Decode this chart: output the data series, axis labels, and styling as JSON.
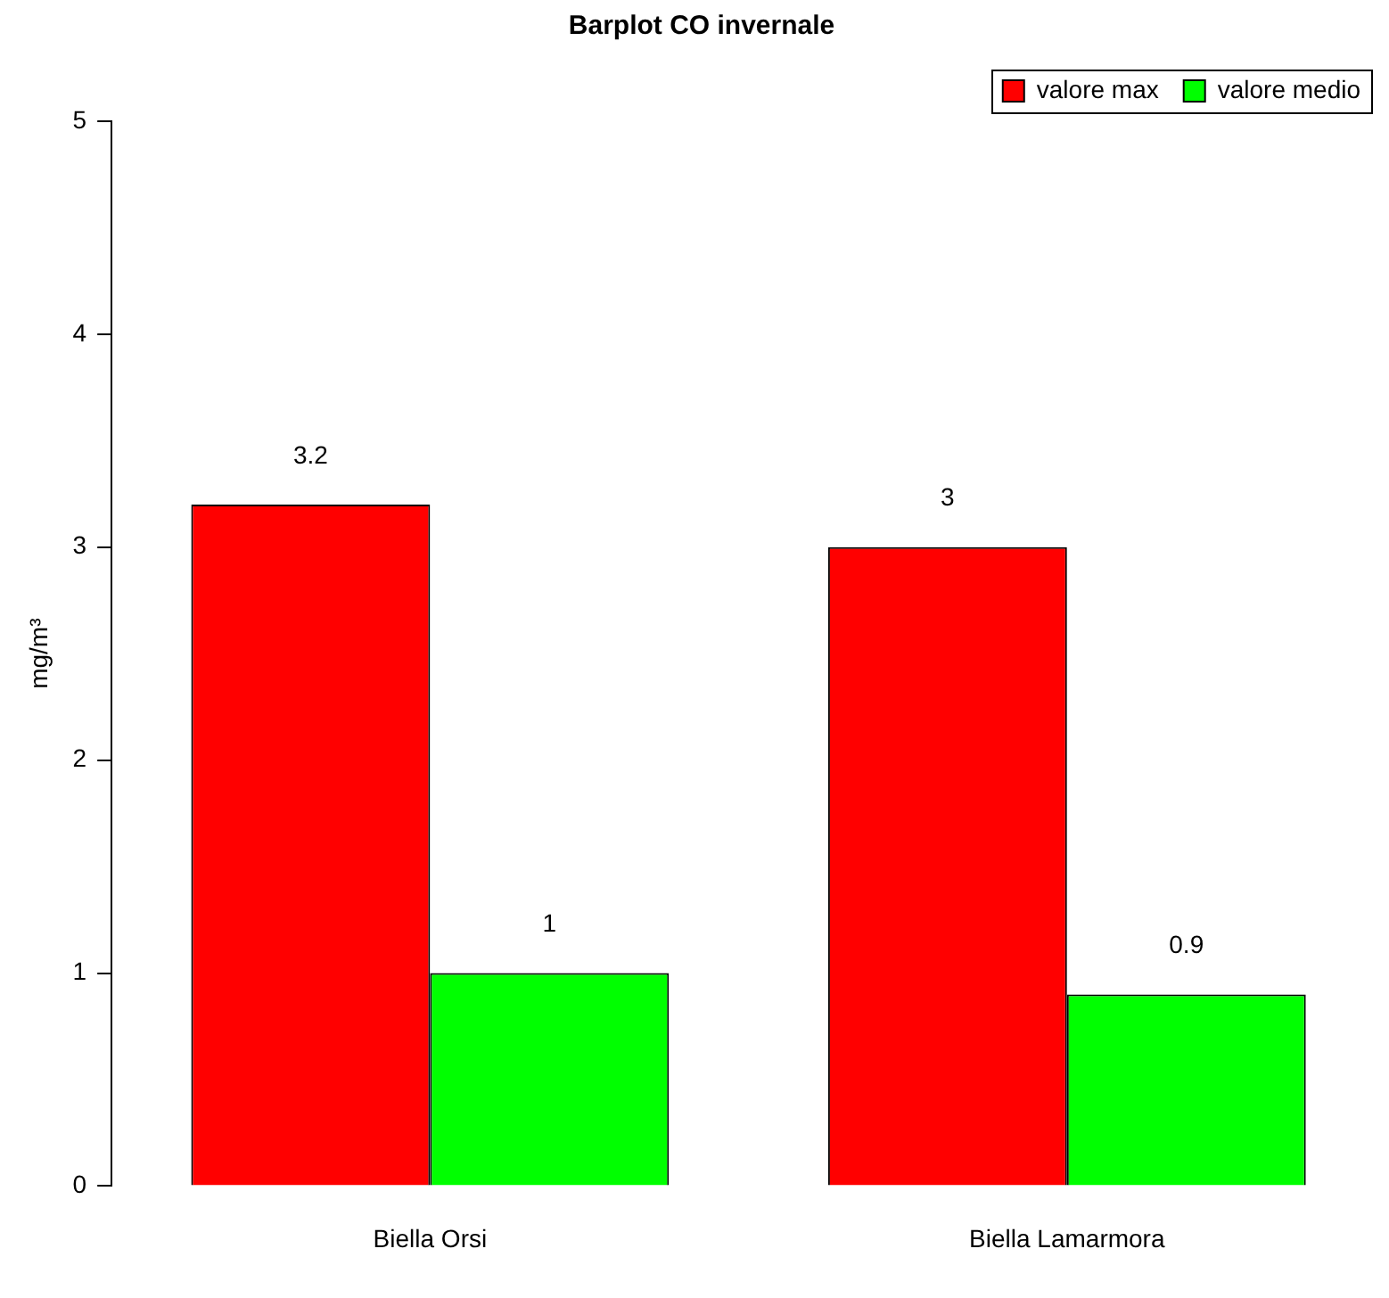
{
  "chart_data": {
    "type": "bar",
    "title": "Barplot CO invernale",
    "ylabel": "mg/m³",
    "categories": [
      "Biella Orsi",
      "Biella Lamarmora"
    ],
    "series": [
      {
        "name": "valore max",
        "color": "#ff0000",
        "values": [
          3.2,
          3
        ]
      },
      {
        "name": "valore medio",
        "color": "#00ff00",
        "values": [
          1,
          0.9
        ]
      }
    ],
    "ylim": [
      0,
      5
    ],
    "yticks": [
      0,
      1,
      2,
      3,
      4,
      5
    ],
    "grid": false,
    "legend": "top right",
    "data_labels": true
  }
}
